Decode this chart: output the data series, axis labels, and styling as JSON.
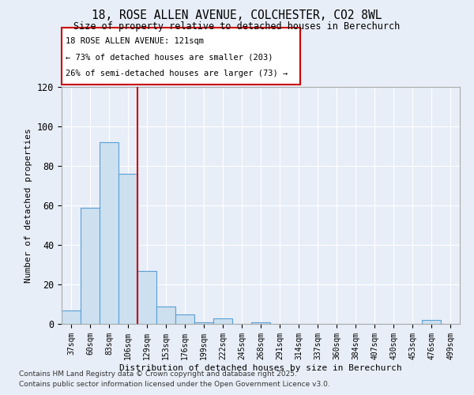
{
  "title_line1": "18, ROSE ALLEN AVENUE, COLCHESTER, CO2 8WL",
  "title_line2": "Size of property relative to detached houses in Berechurch",
  "xlabel": "Distribution of detached houses by size in Berechurch",
  "ylabel": "Number of detached properties",
  "bin_labels": [
    "37sqm",
    "60sqm",
    "83sqm",
    "106sqm",
    "129sqm",
    "153sqm",
    "176sqm",
    "199sqm",
    "222sqm",
    "245sqm",
    "268sqm",
    "291sqm",
    "314sqm",
    "337sqm",
    "360sqm",
    "384sqm",
    "407sqm",
    "430sqm",
    "453sqm",
    "476sqm",
    "499sqm"
  ],
  "bar_heights": [
    7,
    59,
    92,
    76,
    27,
    9,
    5,
    1,
    3,
    0,
    1,
    0,
    0,
    0,
    0,
    0,
    0,
    0,
    0,
    2,
    0
  ],
  "bar_color": "#cce0f0",
  "bar_edge_color": "#5a9fd4",
  "vline_x": 3.5,
  "vline_color": "#cc0000",
  "annotation_line1": "18 ROSE ALLEN AVENUE: 121sqm",
  "annotation_line2": "← 73% of detached houses are smaller (203)",
  "annotation_line3": "26% of semi-detached houses are larger (73) →",
  "annotation_box_color": "#cc0000",
  "ylim": [
    0,
    120
  ],
  "yticks": [
    0,
    20,
    40,
    60,
    80,
    100,
    120
  ],
  "background_color": "#e8eef8",
  "grid_color": "#ffffff",
  "footer_line1": "Contains HM Land Registry data © Crown copyright and database right 2025.",
  "footer_line2": "Contains public sector information licensed under the Open Government Licence v3.0."
}
